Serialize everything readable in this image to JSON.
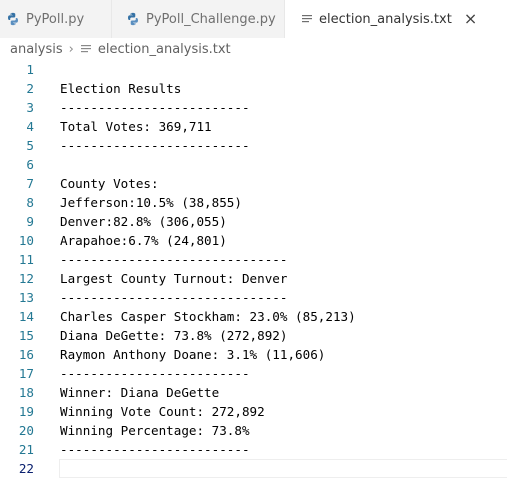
{
  "tabs": [
    {
      "label": "PyPoll.py",
      "icon": "python-icon",
      "active": false
    },
    {
      "label": "PyPoll_Challenge.py",
      "icon": "python-icon",
      "active": false
    },
    {
      "label": "election_analysis.txt",
      "icon": "text-file-icon",
      "active": true
    }
  ],
  "breadcrumb": {
    "folder": "analysis",
    "file": "election_analysis.txt"
  },
  "editor": {
    "lines": [
      {
        "n": "1",
        "text": ""
      },
      {
        "n": "2",
        "text": "Election Results"
      },
      {
        "n": "3",
        "text": "-------------------------"
      },
      {
        "n": "4",
        "text": "Total Votes: 369,711"
      },
      {
        "n": "5",
        "text": "-------------------------"
      },
      {
        "n": "6",
        "text": ""
      },
      {
        "n": "7",
        "text": "County Votes:"
      },
      {
        "n": "8",
        "text": "Jefferson:10.5% (38,855)"
      },
      {
        "n": "9",
        "text": "Denver:82.8% (306,055)"
      },
      {
        "n": "10",
        "text": "Arapahoe:6.7% (24,801)"
      },
      {
        "n": "11",
        "text": "------------------------------"
      },
      {
        "n": "12",
        "text": "Largest County Turnout: Denver"
      },
      {
        "n": "13",
        "text": "------------------------------"
      },
      {
        "n": "14",
        "text": "Charles Casper Stockham: 23.0% (85,213)"
      },
      {
        "n": "15",
        "text": "Diana DeGette: 73.8% (272,892)"
      },
      {
        "n": "16",
        "text": "Raymon Anthony Doane: 3.1% (11,606)"
      },
      {
        "n": "17",
        "text": "-------------------------"
      },
      {
        "n": "18",
        "text": "Winner: Diana DeGette"
      },
      {
        "n": "19",
        "text": "Winning Vote Count: 272,892"
      },
      {
        "n": "20",
        "text": "Winning Percentage: 73.8%"
      },
      {
        "n": "21",
        "text": "-------------------------"
      },
      {
        "n": "22",
        "text": ""
      }
    ],
    "current_line": "22"
  },
  "colors": {
    "line_number": "#237893",
    "python_icon": "#3572a5",
    "tab_bar_bg": "#f3f3f3"
  }
}
